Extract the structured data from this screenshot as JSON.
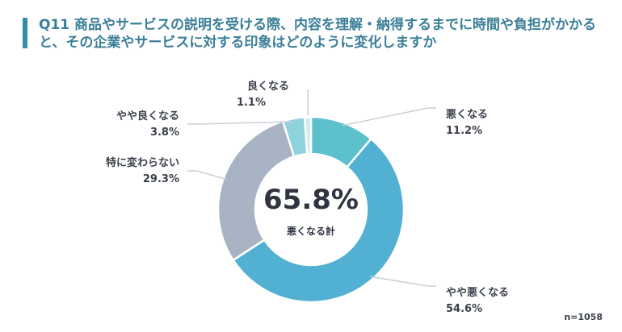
{
  "title": "Q11 商品やサービスの説明を受ける際、内容を理解・納得するまでに時間や負担がかかると、その企業やサービスに対する印象はどのように変化しますか",
  "sample_note": "n=1058",
  "center": {
    "value": "65.8%",
    "label": "悪くなる計"
  },
  "colors": {
    "accent": "#2f8fa6",
    "title_text": "#3b7f98",
    "leader_line": "#c8d0da"
  },
  "chart_data": {
    "type": "pie",
    "donut": true,
    "start": "top, clockwise",
    "slices": [
      {
        "label": "悪くなる",
        "value": 11.2,
        "value_label": "11.2%",
        "color": "#5cc0cd",
        "label_side": "right"
      },
      {
        "label": "やや悪くなる",
        "value": 54.6,
        "value_label": "54.6%",
        "color": "#52b1d2",
        "label_side": "right"
      },
      {
        "label": "特に変わらない",
        "value": 29.3,
        "value_label": "29.3%",
        "color": "#a8b4c4",
        "label_side": "left"
      },
      {
        "label": "やや良くなる",
        "value": 3.8,
        "value_label": "3.8%",
        "color": "#8ed2dc",
        "label_side": "left"
      },
      {
        "label": "良くなる",
        "value": 1.1,
        "value_label": "1.1%",
        "color": "#cfeef2",
        "label_side": "left"
      }
    ],
    "summary": {
      "label": "悪くなる計",
      "value": 65.8
    },
    "n": 1058
  }
}
